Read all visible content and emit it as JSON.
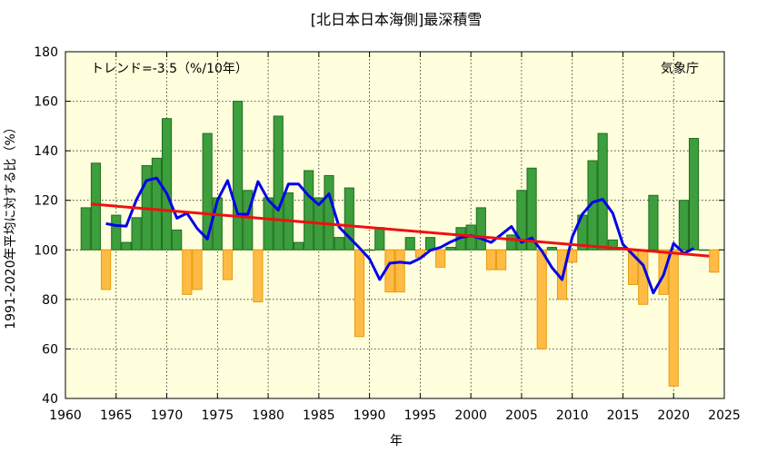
{
  "chart_data": {
    "type": "bar",
    "title": "[北日本日本海側]最深積雪",
    "xlabel": "年",
    "ylabel": "1991-2020年平均に対する比（%）",
    "xlim": [
      1960,
      2025
    ],
    "ylim": [
      40,
      180
    ],
    "baseline": 100,
    "xticks": [
      1960,
      1965,
      1970,
      1975,
      1980,
      1985,
      1990,
      1995,
      2000,
      2005,
      2010,
      2015,
      2020,
      2025
    ],
    "yticks": [
      40,
      60,
      80,
      100,
      120,
      140,
      160,
      180
    ],
    "grid": true,
    "trend_label": "トレンド=-3.5（%/10年）",
    "source_label": "気象庁",
    "colors": {
      "background": "#ffffdd",
      "above_fill": "#3c9e3c",
      "above_edge": "#1e6e1e",
      "below_fill": "#ffbb44",
      "below_edge": "#e89a10",
      "running_mean": "#0000ee",
      "trend": "#ee1111"
    },
    "years": [
      1962,
      1963,
      1964,
      1965,
      1966,
      1967,
      1968,
      1969,
      1970,
      1971,
      1972,
      1973,
      1974,
      1975,
      1976,
      1977,
      1978,
      1979,
      1980,
      1981,
      1982,
      1983,
      1984,
      1985,
      1986,
      1987,
      1988,
      1989,
      1990,
      1991,
      1992,
      1993,
      1994,
      1995,
      1996,
      1997,
      1998,
      1999,
      2000,
      2001,
      2002,
      2003,
      2004,
      2005,
      2006,
      2007,
      2008,
      2009,
      2010,
      2011,
      2012,
      2013,
      2014,
      2015,
      2016,
      2017,
      2018,
      2019,
      2020,
      2021,
      2022,
      2023,
      2024
    ],
    "values": [
      117,
      135,
      84,
      114,
      103,
      113,
      134,
      137,
      153,
      108,
      82,
      84,
      147,
      121,
      88,
      160,
      124,
      79,
      121,
      154,
      123,
      103,
      132,
      121,
      130,
      105,
      125,
      65,
      100,
      109,
      83,
      83,
      105,
      97,
      105,
      93,
      101,
      109,
      110,
      117,
      92,
      92,
      106,
      124,
      133,
      60,
      101,
      80,
      95,
      114,
      136,
      147,
      104,
      101,
      86,
      78,
      122,
      82,
      45,
      120,
      145,
      100,
      91
    ],
    "running_mean": {
      "years": [
        1964,
        1965,
        1966,
        1967,
        1968,
        1969,
        1970,
        1971,
        1972,
        1973,
        1974,
        1975,
        1976,
        1977,
        1978,
        1979,
        1980,
        1981,
        1982,
        1983,
        1984,
        1985,
        1986,
        1987,
        1988,
        1989,
        1990,
        1991,
        1992,
        1993,
        1994,
        1995,
        1996,
        1997,
        1998,
        1999,
        2000,
        2001,
        2002,
        2003,
        2004,
        2005,
        2006,
        2007,
        2008,
        2009,
        2010,
        2011,
        2012,
        2013,
        2014,
        2015,
        2016,
        2017,
        2018,
        2019,
        2020,
        2021,
        2022
      ],
      "values": [
        110.6,
        109.8,
        109.6,
        120.2,
        128.0,
        129.0,
        122.8,
        112.8,
        114.8,
        108.6,
        104.4,
        120.0,
        128.0,
        114.4,
        114.4,
        127.6,
        120.2,
        116.0,
        126.6,
        126.6,
        121.8,
        118.2,
        122.6,
        109.2,
        105.0,
        100.8,
        96.4,
        88.0,
        94.6,
        95.0,
        94.6,
        96.6,
        99.8,
        101.0,
        103.2,
        105.0,
        105.8,
        104.6,
        103.0,
        106.2,
        109.4,
        103.0,
        104.8,
        99.6,
        92.8,
        88.0,
        105.2,
        114.4,
        119.2,
        120.4,
        114.8,
        102.2,
        98.0,
        93.8,
        82.6,
        89.8,
        102.6,
        98.6,
        100.6
      ]
    },
    "trend": {
      "x": [
        1962.5,
        2023.5
      ],
      "y": [
        118.5,
        97.5
      ]
    }
  }
}
